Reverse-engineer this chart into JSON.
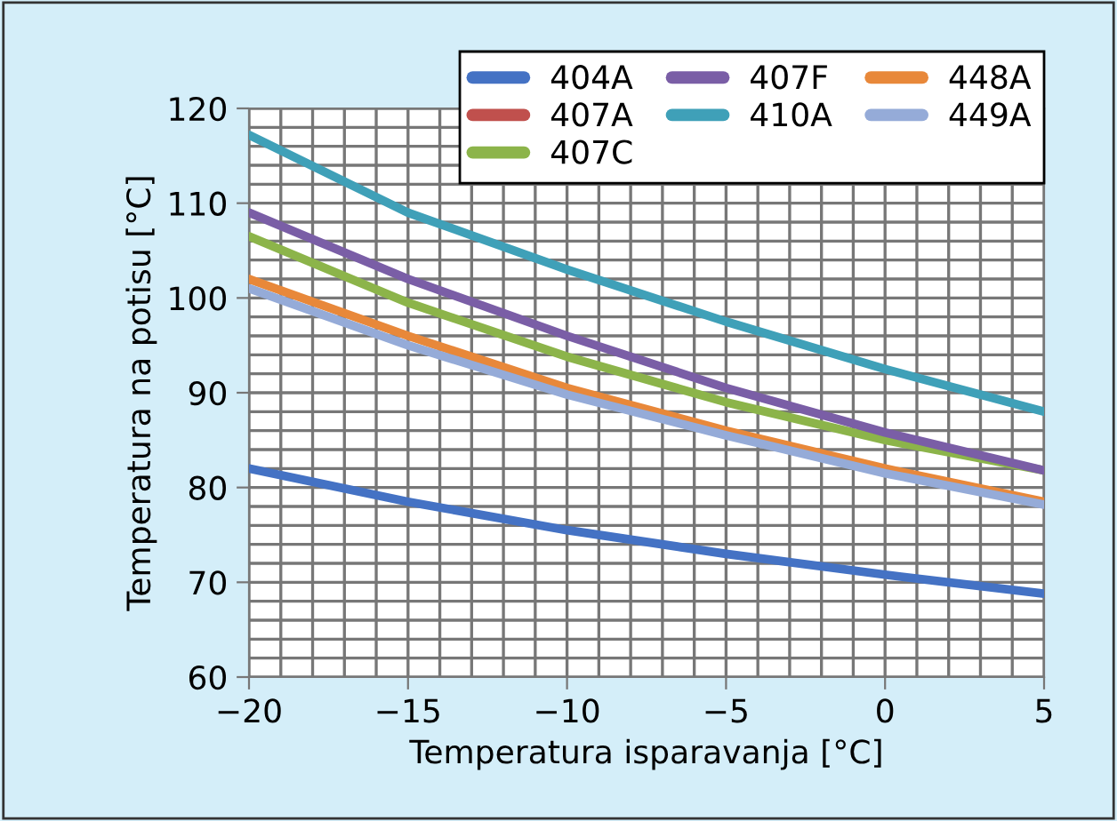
{
  "chart_data": {
    "type": "line",
    "xlabel": "Temperatura isparavanja [°C]",
    "ylabel": "Temperatura na potisu [°C]",
    "x": [
      -20,
      -15,
      -10,
      -5,
      0,
      5
    ],
    "series": [
      {
        "name": "404A",
        "color": "#4472c4",
        "values": [
          82,
          78.5,
          75.5,
          73,
          70.8,
          68.8
        ]
      },
      {
        "name": "407A",
        "color": "#c0504d",
        "values": [
          null,
          null,
          null,
          null,
          null,
          null
        ]
      },
      {
        "name": "407C",
        "color": "#8cb44a",
        "values": [
          106.5,
          99.5,
          93.8,
          89,
          85,
          81.8
        ]
      },
      {
        "name": "407F",
        "color": "#7a5ea6",
        "values": [
          109,
          102,
          96,
          90.5,
          85.8,
          81.8
        ]
      },
      {
        "name": "410A",
        "color": "#3fa0b8",
        "values": [
          117.2,
          109,
          103,
          97.5,
          92.5,
          88
        ]
      },
      {
        "name": "448A",
        "color": "#e8883a",
        "values": [
          102,
          96,
          90.5,
          86,
          82,
          78.5
        ]
      },
      {
        "name": "449A",
        "color": "#95abd8",
        "values": [
          101,
          95,
          89.8,
          85.5,
          81.5,
          78.2
        ]
      }
    ],
    "xlim": [
      -20,
      5
    ],
    "ylim": [
      60,
      120
    ],
    "xticks": [
      {
        "value": -20,
        "label": "−20"
      },
      {
        "value": -19,
        "label": null
      },
      {
        "value": -18,
        "label": null
      },
      {
        "value": -17,
        "label": null
      },
      {
        "value": -16,
        "label": null
      },
      {
        "value": -15,
        "label": "−15"
      },
      {
        "value": -14,
        "label": null
      },
      {
        "value": -13,
        "label": null
      },
      {
        "value": -12,
        "label": null
      },
      {
        "value": -11,
        "label": null
      },
      {
        "value": -10,
        "label": "−10"
      },
      {
        "value": -9,
        "label": null
      },
      {
        "value": -8,
        "label": null
      },
      {
        "value": -7,
        "label": null
      },
      {
        "value": -6,
        "label": null
      },
      {
        "value": -5,
        "label": "−5"
      },
      {
        "value": -4,
        "label": null
      },
      {
        "value": -3,
        "label": null
      },
      {
        "value": -2,
        "label": null
      },
      {
        "value": -1,
        "label": null
      },
      0,
      {
        "value": 1,
        "label": null
      },
      {
        "value": 2,
        "label": null
      },
      {
        "value": 3,
        "label": null
      },
      {
        "value": 4,
        "label": null
      },
      5
    ],
    "yticks": [
      60,
      {
        "value": 62,
        "label": null
      },
      {
        "value": 64,
        "label": null
      },
      {
        "value": 66,
        "label": null
      },
      {
        "value": 68,
        "label": null
      },
      70,
      {
        "value": 72,
        "label": null
      },
      {
        "value": 74,
        "label": null
      },
      {
        "value": 76,
        "label": null
      },
      {
        "value": 78,
        "label": null
      },
      80,
      {
        "value": 82,
        "label": null
      },
      {
        "value": 84,
        "label": null
      },
      {
        "value": 86,
        "label": null
      },
      {
        "value": 88,
        "label": null
      },
      90,
      {
        "value": 92,
        "label": null
      },
      {
        "value": 94,
        "label": null
      },
      {
        "value": 96,
        "label": null
      },
      {
        "value": 98,
        "label": null
      },
      100,
      {
        "value": 102,
        "label": null
      },
      {
        "value": 104,
        "label": null
      },
      {
        "value": 106,
        "label": null
      },
      {
        "value": 108,
        "label": null
      },
      110,
      {
        "value": 112,
        "label": null
      },
      {
        "value": 114,
        "label": null
      },
      {
        "value": 116,
        "label": null
      },
      {
        "value": 118,
        "label": null
      },
      120
    ],
    "grid": true,
    "legend": "top right",
    "line_style": "solid",
    "marker": "none"
  }
}
